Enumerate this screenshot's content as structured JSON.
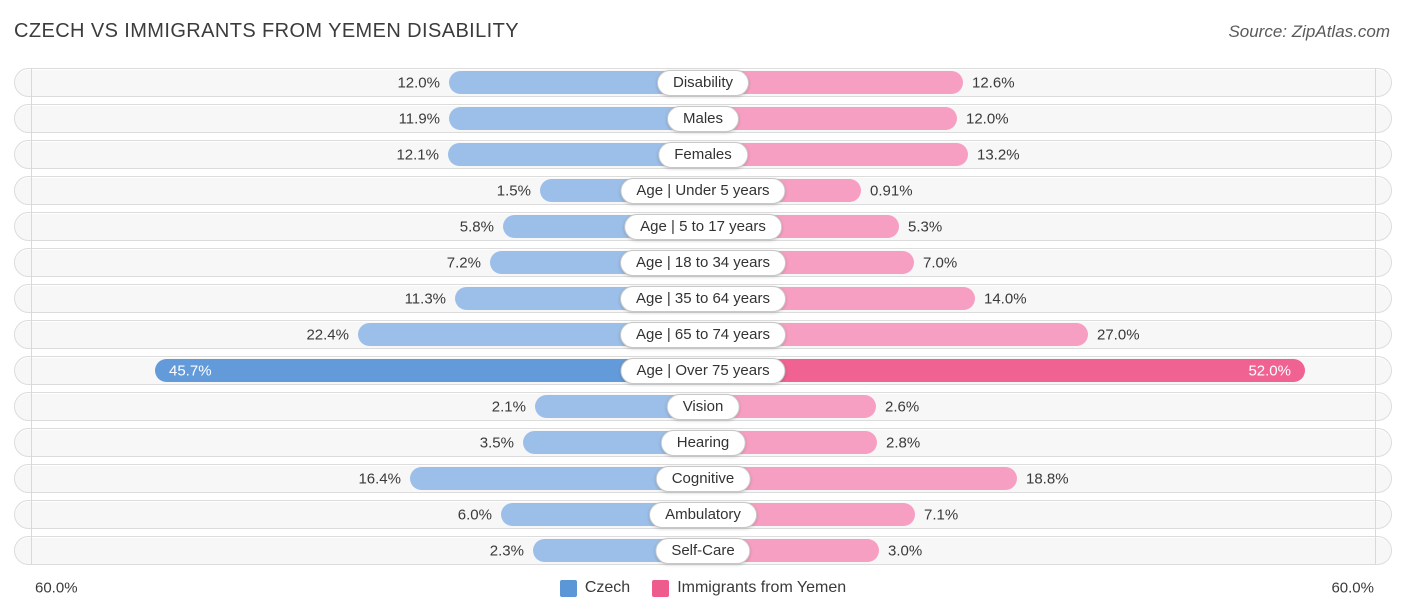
{
  "title": "CZECH VS IMMIGRANTS FROM YEMEN DISABILITY",
  "source": "Source: ZipAtlas.com",
  "axis": {
    "left_label": "60.0%",
    "right_label": "60.0%",
    "max_percent": 60
  },
  "colors": {
    "czech_light": "#9bbfe9",
    "czech_strong": "#639bda",
    "yemen_light": "#f79fc2",
    "yemen_strong": "#ef6292",
    "legend_czech": "#5b96d6",
    "legend_yemen": "#ee5c8e"
  },
  "legend": {
    "items": [
      {
        "label": "Czech",
        "color": "#5b96d6"
      },
      {
        "label": "Immigrants from Yemen",
        "color": "#ee5c8e"
      }
    ]
  },
  "chart_data": {
    "type": "bar",
    "orientation": "diverging-horizontal",
    "title": "CZECH VS IMMIGRANTS FROM YEMEN DISABILITY",
    "categories": [
      "Disability",
      "Males",
      "Females",
      "Age | Under 5 years",
      "Age | 5 to 17 years",
      "Age | 18 to 34 years",
      "Age | 35 to 64 years",
      "Age | 65 to 74 years",
      "Age | Over 75 years",
      "Vision",
      "Hearing",
      "Cognitive",
      "Ambulatory",
      "Self-Care"
    ],
    "series": [
      {
        "name": "Czech",
        "values": [
          12.0,
          11.9,
          12.1,
          1.5,
          5.8,
          7.2,
          11.3,
          22.4,
          45.7,
          2.1,
          3.5,
          16.4,
          6.0,
          2.3
        ],
        "labels": [
          "12.0%",
          "11.9%",
          "12.1%",
          "1.5%",
          "5.8%",
          "7.2%",
          "11.3%",
          "22.4%",
          "45.7%",
          "2.1%",
          "3.5%",
          "16.4%",
          "6.0%",
          "2.3%"
        ]
      },
      {
        "name": "Immigrants from Yemen",
        "values": [
          12.6,
          12.0,
          13.2,
          0.91,
          5.3,
          7.0,
          14.0,
          27.0,
          52.0,
          2.6,
          2.8,
          18.8,
          7.1,
          3.0
        ],
        "labels": [
          "12.6%",
          "12.0%",
          "13.2%",
          "0.91%",
          "5.3%",
          "7.0%",
          "14.0%",
          "27.0%",
          "52.0%",
          "2.6%",
          "2.8%",
          "18.8%",
          "7.1%",
          "3.0%"
        ]
      }
    ],
    "xlim": [
      -60,
      60
    ],
    "highlight_category": "Age | Over 75 years",
    "grid": "plot-boundary-only",
    "legend_position": "bottom"
  }
}
